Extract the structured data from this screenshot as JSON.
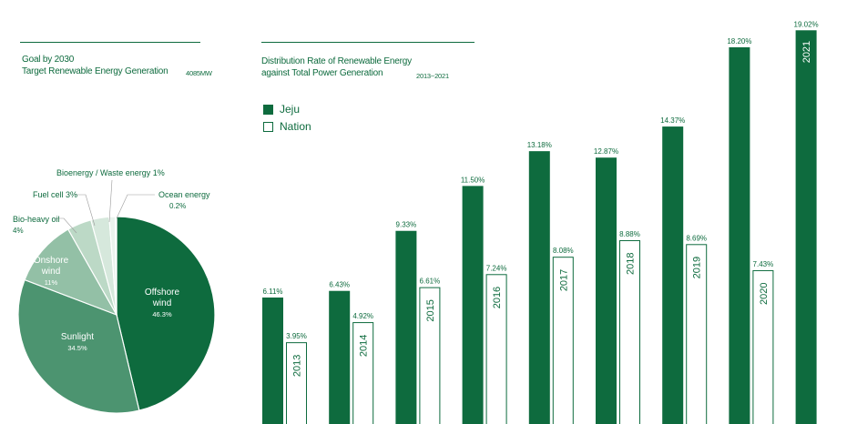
{
  "colors": {
    "jeju": "#0e6b3e",
    "nation_fill": "#ffffff",
    "nation_stroke": "#0e6b3e",
    "pie": [
      "#0e6b3e",
      "#4c9470",
      "#93c0a6",
      "#bcd9c6",
      "#d6e8dc",
      "#eaf3ed"
    ]
  },
  "left": {
    "title_line1": "Goal by 2030",
    "title_line2": "Target Renewable Energy Generation",
    "total": "4085MW"
  },
  "right": {
    "title_line1": "Distribution Rate of Renewable Energy",
    "title_line2": "against Total Power Generation",
    "period": "2013~2021"
  },
  "legend": {
    "jeju": "Jeju",
    "nation": "Nation"
  },
  "chart_data": [
    {
      "type": "pie",
      "title": "Goal by 2030 Target Renewable Energy Generation",
      "slices": [
        {
          "name": "Offshore wind",
          "label_lines": [
            "Offshore",
            "wind"
          ],
          "value": 46.3,
          "display": "46.3%"
        },
        {
          "name": "Sunlight",
          "label_lines": [
            "Sunlight"
          ],
          "value": 34.5,
          "display": "34.5%"
        },
        {
          "name": "Onshore wind",
          "label_lines": [
            "Onshore",
            "wind"
          ],
          "value": 11,
          "display": "11%"
        },
        {
          "name": "Bio-heavy oil",
          "label_lines": [
            "Bio-heavy oil"
          ],
          "value": 4,
          "display": "4%"
        },
        {
          "name": "Fuel cell",
          "label_lines": [
            "Fuel cell 3%"
          ],
          "value": 3,
          "display": ""
        },
        {
          "name": "Bioenergy / Waste energy",
          "label_lines": [
            "Bioenergy / Waste energy 1%"
          ],
          "value": 1,
          "display": ""
        },
        {
          "name": "Ocean energy",
          "label_lines": [
            "Ocean energy"
          ],
          "value": 0.2,
          "display": "0.2%"
        }
      ]
    },
    {
      "type": "bar",
      "title": "Distribution Rate of Renewable Energy against Total Power Generation",
      "categories": [
        "2013",
        "2014",
        "2015",
        "2016",
        "2017",
        "2018",
        "2019",
        "2020",
        "2021"
      ],
      "series": [
        {
          "name": "Jeju",
          "values": [
            6.11,
            6.43,
            9.33,
            11.5,
            13.18,
            12.87,
            14.37,
            18.2,
            19.02
          ],
          "labels": [
            "6.11%",
            "6.43%",
            "9.33%",
            "11.50%",
            "13.18%",
            "12.87%",
            "14.37%",
            "18.20%",
            "19.02%"
          ]
        },
        {
          "name": "Nation",
          "values": [
            3.95,
            4.92,
            6.61,
            7.24,
            8.08,
            8.88,
            8.69,
            7.43,
            null
          ],
          "labels": [
            "3.95%",
            "4.92%",
            "6.61%",
            "7.24%",
            "8.08%",
            "8.88%",
            "8.69%",
            "7.43%",
            ""
          ]
        }
      ]
    }
  ]
}
